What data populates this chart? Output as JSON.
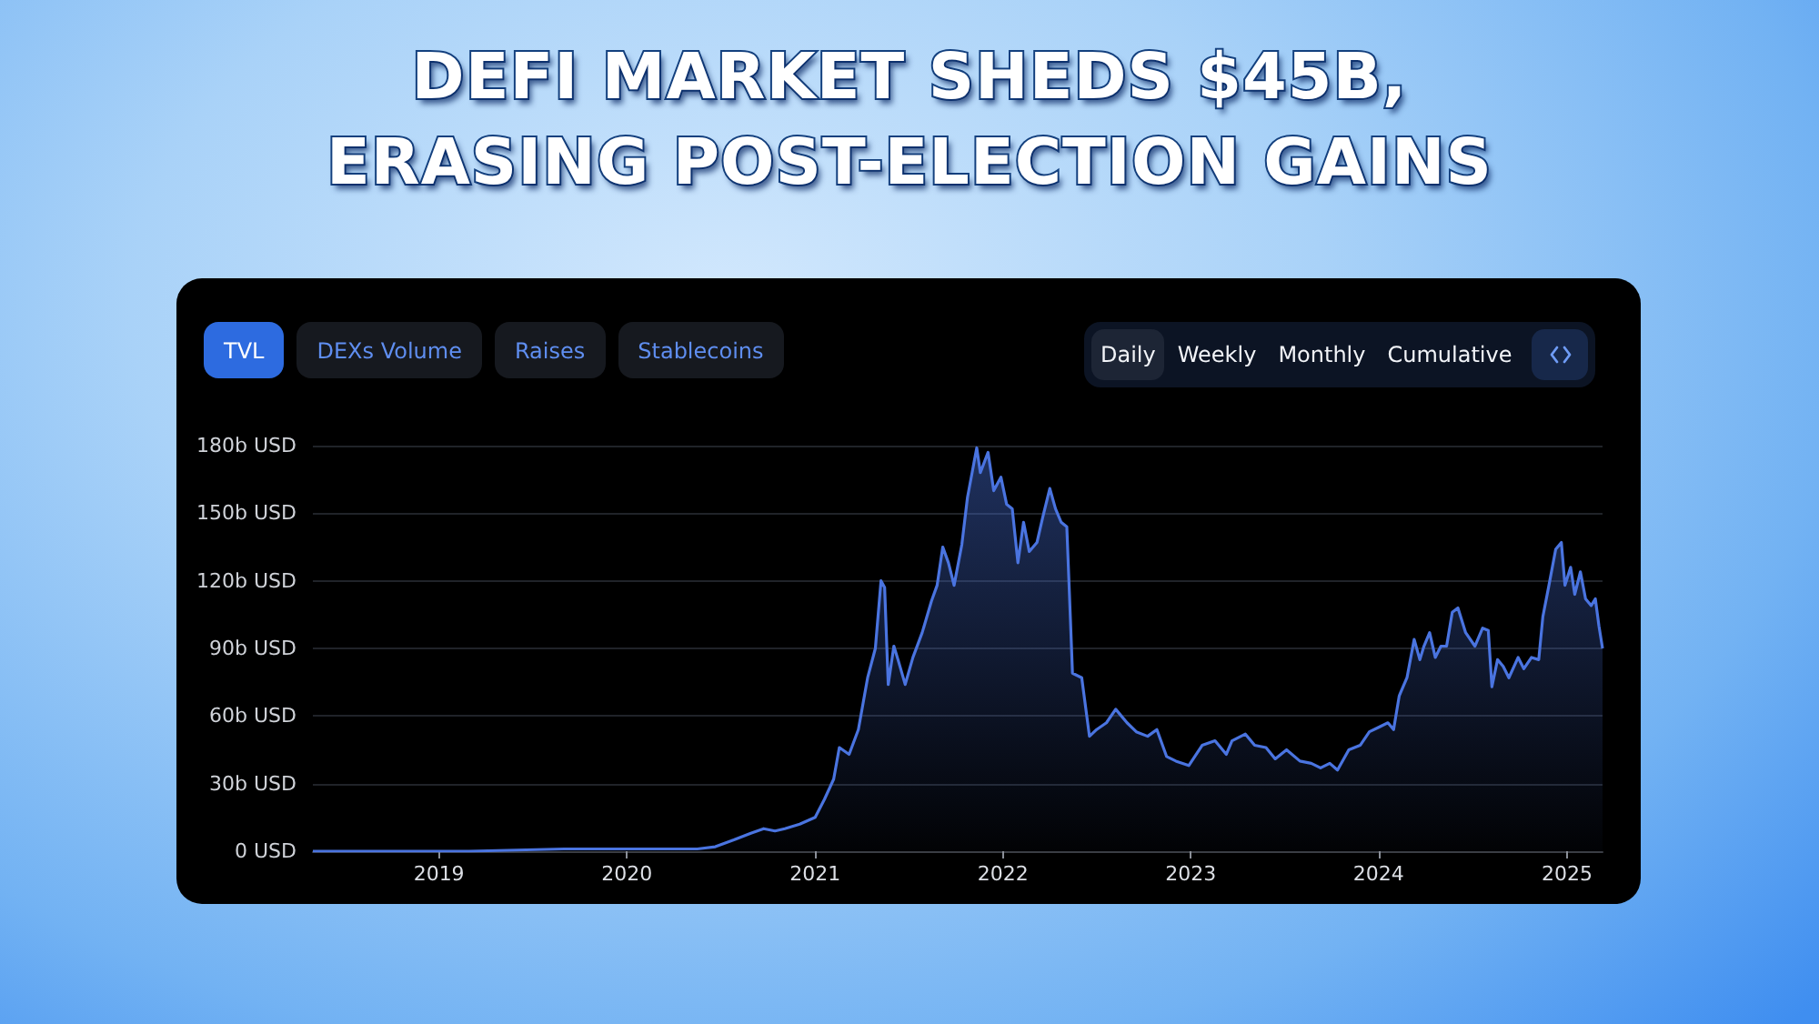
{
  "chart_data": {
    "type": "area",
    "title": "DEFI MARKET SHEDS $45B, ERASING POST-ELECTION GAINS",
    "annotations": [
      "TVL",
      "DEXs Volume",
      "Raises",
      "Stablecoins",
      "Daily",
      "Weekly",
      "Monthly",
      "Cumulative"
    ],
    "x": [
      "2018-05-01",
      "2018-10-01",
      "2019-03-01",
      "2019-09-01",
      "2020-02-01",
      "2020-05-17",
      "2020-06-21",
      "2020-07-27",
      "2020-08-29",
      "2020-09-23",
      "2020-10-15",
      "2020-11-03",
      "2020-12-02",
      "2021-01-01",
      "2021-01-19",
      "2021-02-06",
      "2021-02-17",
      "2021-03-08",
      "2021-03-26",
      "2021-04-13",
      "2021-04-28",
      "2021-05-09",
      "2021-05-16",
      "2021-05-23",
      "2021-06-03",
      "2021-06-11",
      "2021-06-25",
      "2021-07-10",
      "2021-07-28",
      "2021-08-15",
      "2021-08-26",
      "2021-09-06",
      "2021-09-17",
      "2021-09-28",
      "2021-10-13",
      "2021-10-24",
      "2021-11-11",
      "2021-11-18",
      "2021-12-03",
      "2021-12-14",
      "2021-12-28",
      "2022-01-08",
      "2022-01-19",
      "2022-01-30",
      "2022-02-10",
      "2022-02-21",
      "2022-03-08",
      "2022-03-19",
      "2022-04-02",
      "2022-04-13",
      "2022-04-24",
      "2022-05-05",
      "2022-05-12",
      "2022-05-16",
      "2022-06-03",
      "2022-06-18",
      "2022-07-02",
      "2022-07-21",
      "2022-08-08",
      "2022-08-30",
      "2022-09-17",
      "2022-10-09",
      "2022-10-27",
      "2022-11-15",
      "2022-12-03",
      "2022-12-28",
      "2023-01-23",
      "2023-02-17",
      "2023-03-11",
      "2023-03-22",
      "2023-04-17",
      "2023-05-05",
      "2023-05-27",
      "2023-06-14",
      "2023-07-06",
      "2023-08-01",
      "2023-08-23",
      "2023-09-10",
      "2023-09-28",
      "2023-10-13",
      "2023-11-04",
      "2023-11-26",
      "2023-12-14",
      "2024-01-01",
      "2024-01-19",
      "2024-01-30",
      "2024-02-10",
      "2024-02-25",
      "2024-03-10",
      "2024-03-21",
      "2024-03-29",
      "2024-04-09",
      "2024-04-20",
      "2024-05-01",
      "2024-05-12",
      "2024-05-23",
      "2024-06-03",
      "2024-06-18",
      "2024-07-06",
      "2024-07-21",
      "2024-08-01",
      "2024-08-08",
      "2024-08-19",
      "2024-08-30",
      "2024-09-10",
      "2024-09-28",
      "2024-10-09",
      "2024-10-24",
      "2024-11-07",
      "2024-11-15",
      "2024-11-26",
      "2024-12-10",
      "2024-12-21",
      "2024-12-28",
      "2025-01-08",
      "2025-01-16",
      "2025-01-27",
      "2025-02-06",
      "2025-02-17",
      "2025-02-25",
      "2025-03-04",
      "2025-03-11"
    ],
    "values": [
      0,
      0,
      0,
      1,
      1,
      1,
      2,
      5,
      8,
      10,
      9,
      10,
      12,
      15,
      23,
      32,
      46,
      43,
      54,
      77,
      90,
      120,
      117,
      74,
      91,
      85,
      74,
      86,
      97,
      111,
      118,
      135,
      128,
      118,
      136,
      157,
      179,
      168,
      177,
      160,
      166,
      154,
      152,
      128,
      146,
      133,
      137,
      148,
      161,
      152,
      146,
      144,
      103,
      79,
      77,
      51,
      54,
      57,
      63,
      57,
      53,
      51,
      54,
      42,
      40,
      38,
      47,
      49,
      43,
      49,
      52,
      47,
      46,
      41,
      45,
      40,
      39,
      37,
      39,
      36,
      45,
      47,
      53,
      55,
      57,
      54,
      69,
      77,
      94,
      85,
      91,
      97,
      86,
      91,
      91,
      106,
      108,
      97,
      91,
      99,
      98,
      73,
      85,
      82,
      77,
      86,
      81,
      86,
      85,
      104,
      117,
      134,
      137,
      118,
      126,
      114,
      124,
      112,
      109,
      112,
      100,
      90
    ],
    "color": "#4a74e0",
    "marker": "none",
    "grid": "y",
    "xlim": [
      "2018-05-01",
      "2025-03-11"
    ],
    "xticks": [
      "2019",
      "2020",
      "2021",
      "2022",
      "2023",
      "2024",
      "2025"
    ],
    "ylim": [
      0,
      180
    ],
    "yticks": [
      {
        "value": 0,
        "label": "0 USD"
      },
      {
        "value": 30,
        "label": "30b USD"
      },
      {
        "value": 60,
        "label": "60b USD"
      },
      {
        "value": 90,
        "label": "90b USD"
      },
      {
        "value": 120,
        "label": "120b USD"
      },
      {
        "value": 150,
        "label": "150b USD"
      },
      {
        "value": 180,
        "label": "180b USD"
      }
    ]
  }
}
